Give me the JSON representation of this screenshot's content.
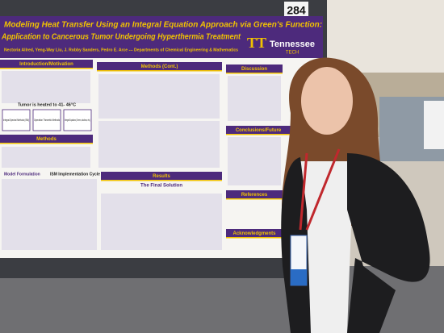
{
  "board_number": "284",
  "poster": {
    "title_line1": "Modeling Heat Transfer Using an Integral Equation Approach via Green's Function:",
    "title_line2": "Application to Cancerous Tumor Undergoing Hyperthermia Treatment",
    "authors": "Nectoria Allred, Yeng-Way Liu, J. Robby Sanders, Pedro E. Arce --- Departments of Chemical Engineering & Mathematics",
    "logo_mark": "TT",
    "logo_name": "Tennessee",
    "logo_sub": "TECH",
    "sections": [
      "Introduction/Motivation",
      "Methods (Cont.)",
      "Discussion",
      "Methods",
      "Conclusions/Future",
      "Results",
      "References",
      "Acknowledgments"
    ],
    "tumor_note": "Tumor is heated to 41- 46°C",
    "method_boxes": [
      "Integral-Spectral Methods (ISM)",
      "Operation Theoretic Methods",
      "Integral Equations (Green, solutions, etc.)"
    ],
    "cycle_title": "ISM Implementation Cycle",
    "model_title": "Model Formulation",
    "final_solution": "The Final Solution"
  }
}
